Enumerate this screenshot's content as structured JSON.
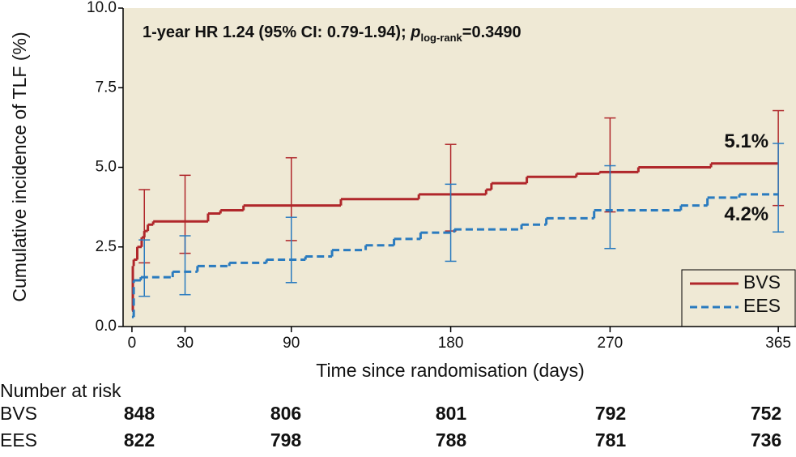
{
  "chart_data": {
    "type": "step",
    "y_label": "Cumulative incidence of TLF (%)",
    "x_label": "Time since randomisation (days)",
    "xlim": [
      -5,
      375
    ],
    "ylim": [
      0,
      10
    ],
    "xticks": [
      0,
      30,
      90,
      180,
      270,
      365
    ],
    "yticks": [
      {
        "value": 0,
        "label": "0.0"
      },
      2.5,
      {
        "value": 5,
        "label": "5.0"
      },
      7.5,
      {
        "value": 10,
        "label": "10.0"
      }
    ],
    "background": "#efe9d5",
    "legend": "lower right",
    "annotation": {
      "prefix": "1-year HR 1.24 (95% CI: 0.79-1.94); ",
      "p": "p",
      "sub": "log-rank",
      "suffix": "=0.3490"
    },
    "series": [
      {
        "name": "BVS",
        "color": "#b0272b",
        "dash": false,
        "x": [
          0,
          0.5,
          1,
          3,
          5.5,
          7,
          9,
          12,
          43,
          50,
          63,
          118,
          162,
          200,
          203,
          223,
          251,
          264,
          286,
          327,
          365
        ],
        "values": [
          0.5,
          1.9,
          2.1,
          2.5,
          2.8,
          3.0,
          3.2,
          3.3,
          3.55,
          3.65,
          3.8,
          4.0,
          4.15,
          4.3,
          4.5,
          4.7,
          4.8,
          4.85,
          5.0,
          5.12,
          5.12
        ],
        "ci_x": [
          7,
          30,
          90,
          180,
          270,
          365
        ],
        "ci_lower": [
          2.0,
          2.3,
          2.7,
          3.0,
          3.6,
          3.8
        ],
        "ci_upper": [
          4.3,
          4.75,
          5.3,
          5.72,
          6.55,
          6.78
        ],
        "end_label": "5.1%"
      },
      {
        "name": "EES",
        "color": "#2a7bbf",
        "dash": true,
        "x": [
          0,
          1,
          5,
          23,
          37,
          55,
          76,
          98,
          113,
          132,
          148,
          163,
          182,
          220,
          234,
          261,
          310,
          325,
          343,
          365
        ],
        "values": [
          0.3,
          1.45,
          1.55,
          1.72,
          1.9,
          2.0,
          2.1,
          2.2,
          2.4,
          2.55,
          2.75,
          2.95,
          3.05,
          3.2,
          3.4,
          3.65,
          3.8,
          4.05,
          4.15,
          4.15
        ],
        "ci_x": [
          7,
          30,
          90,
          180,
          270,
          365
        ],
        "ci_lower": [
          0.95,
          1.0,
          1.38,
          2.05,
          2.45,
          2.97
        ],
        "ci_upper": [
          2.72,
          2.85,
          3.43,
          4.47,
          5.05,
          5.75
        ],
        "end_label": "4.2%"
      }
    ],
    "risk_table": {
      "title": "Number at risk",
      "rows": [
        {
          "label": "BVS",
          "values": [
            848,
            806,
            801,
            792,
            752
          ]
        },
        {
          "label": "EES",
          "values": [
            822,
            798,
            788,
            781,
            736
          ]
        }
      ]
    }
  }
}
